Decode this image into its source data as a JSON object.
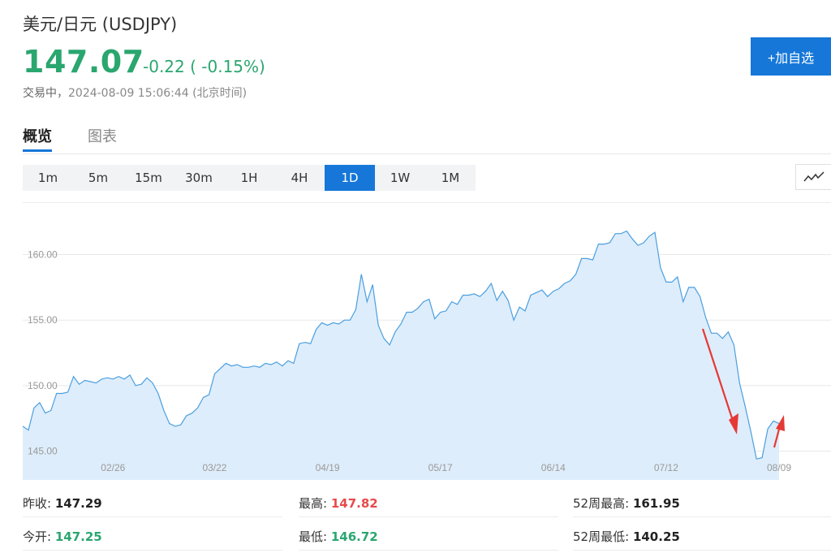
{
  "header": {
    "title": "美元/日元  (USDJPY)",
    "price": "147.07",
    "change": "-0.22 ( -0.15%)",
    "status": "交易中，",
    "datetime": "2024-08-09 15:06:44 (北京时间)",
    "add_button": "+加自选"
  },
  "tabs": [
    {
      "label": "概览",
      "active": true
    },
    {
      "label": "图表",
      "active": false
    }
  ],
  "periods": [
    {
      "label": "1m",
      "active": false
    },
    {
      "label": "5m",
      "active": false
    },
    {
      "label": "15m",
      "active": false
    },
    {
      "label": "30m",
      "active": false
    },
    {
      "label": "1H",
      "active": false
    },
    {
      "label": "4H",
      "active": false
    },
    {
      "label": "1D",
      "active": true
    },
    {
      "label": "1W",
      "active": false
    },
    {
      "label": "1M",
      "active": false
    }
  ],
  "chart_type_icon": "line-chart-icon",
  "colors": {
    "up": "#2aa66f",
    "down": "#e84a4a",
    "accent": "#1677d9",
    "line": "#4a9fe0",
    "area": "#deedfb",
    "arrow": "#e53935"
  },
  "chart_data": {
    "type": "area",
    "title": "",
    "xlabel": "",
    "ylabel": "",
    "ylim": [
      142.8,
      164.0
    ],
    "y_ticks": [
      145.0,
      150.0,
      155.0,
      160.0
    ],
    "y_tick_labels": [
      "145.00",
      "150.00",
      "155.00",
      "160.00"
    ],
    "x_tick_labels": [
      "02/26",
      "03/22",
      "04/19",
      "05/17",
      "06/14",
      "07/12",
      "08/09"
    ],
    "x_tick_index": [
      16,
      34,
      54,
      74,
      94,
      114,
      134
    ],
    "grid": true,
    "series": [
      {
        "values": [
          146.9,
          146.6,
          148.3,
          148.7,
          147.9,
          148.1,
          149.4,
          149.4,
          149.5,
          150.7,
          150.1,
          150.4,
          150.3,
          150.2,
          150.5,
          150.6,
          150.5,
          150.7,
          150.5,
          150.8,
          150.0,
          150.1,
          150.6,
          150.2,
          149.4,
          148.1,
          147.1,
          146.9,
          147.0,
          147.7,
          147.9,
          148.3,
          149.1,
          149.3,
          150.9,
          151.3,
          151.7,
          151.5,
          151.6,
          151.4,
          151.4,
          151.5,
          151.4,
          151.7,
          151.6,
          151.8,
          151.5,
          151.9,
          151.7,
          153.2,
          153.3,
          153.2,
          154.3,
          154.8,
          154.6,
          154.8,
          154.7,
          155.0,
          155.0,
          155.8,
          158.5,
          156.4,
          157.7,
          154.6,
          153.6,
          153.1,
          154.1,
          154.7,
          155.6,
          155.6,
          155.9,
          156.4,
          156.6,
          155.1,
          155.6,
          155.7,
          156.4,
          156.2,
          156.9,
          156.9,
          157.0,
          156.8,
          157.2,
          157.8,
          156.5,
          157.2,
          156.5,
          155.0,
          156.0,
          155.7,
          156.9,
          157.1,
          157.3,
          156.8,
          157.2,
          157.4,
          157.8,
          158.0,
          158.5,
          159.7,
          159.7,
          159.6,
          160.8,
          160.8,
          160.9,
          161.6,
          161.6,
          161.8,
          161.2,
          160.7,
          160.9,
          161.4,
          161.7,
          159.0,
          157.9,
          157.9,
          158.3,
          156.4,
          157.5,
          157.5,
          156.8,
          155.2,
          154.0,
          154.0,
          153.6,
          154.1,
          153.1,
          150.2,
          148.4,
          146.5,
          144.4,
          144.5,
          146.7,
          147.3,
          147.1
        ]
      }
    ]
  },
  "stats": {
    "prev_close_label": "昨收:",
    "prev_close": "147.29",
    "high_label": "最高:",
    "high": "147.82",
    "week52_high_label": "52周最高:",
    "week52_high": "161.95",
    "open_label": "今开:",
    "open": "147.25",
    "low_label": "最低:",
    "low": "146.72",
    "week52_low_label": "52周最低:",
    "week52_low": "140.25"
  }
}
